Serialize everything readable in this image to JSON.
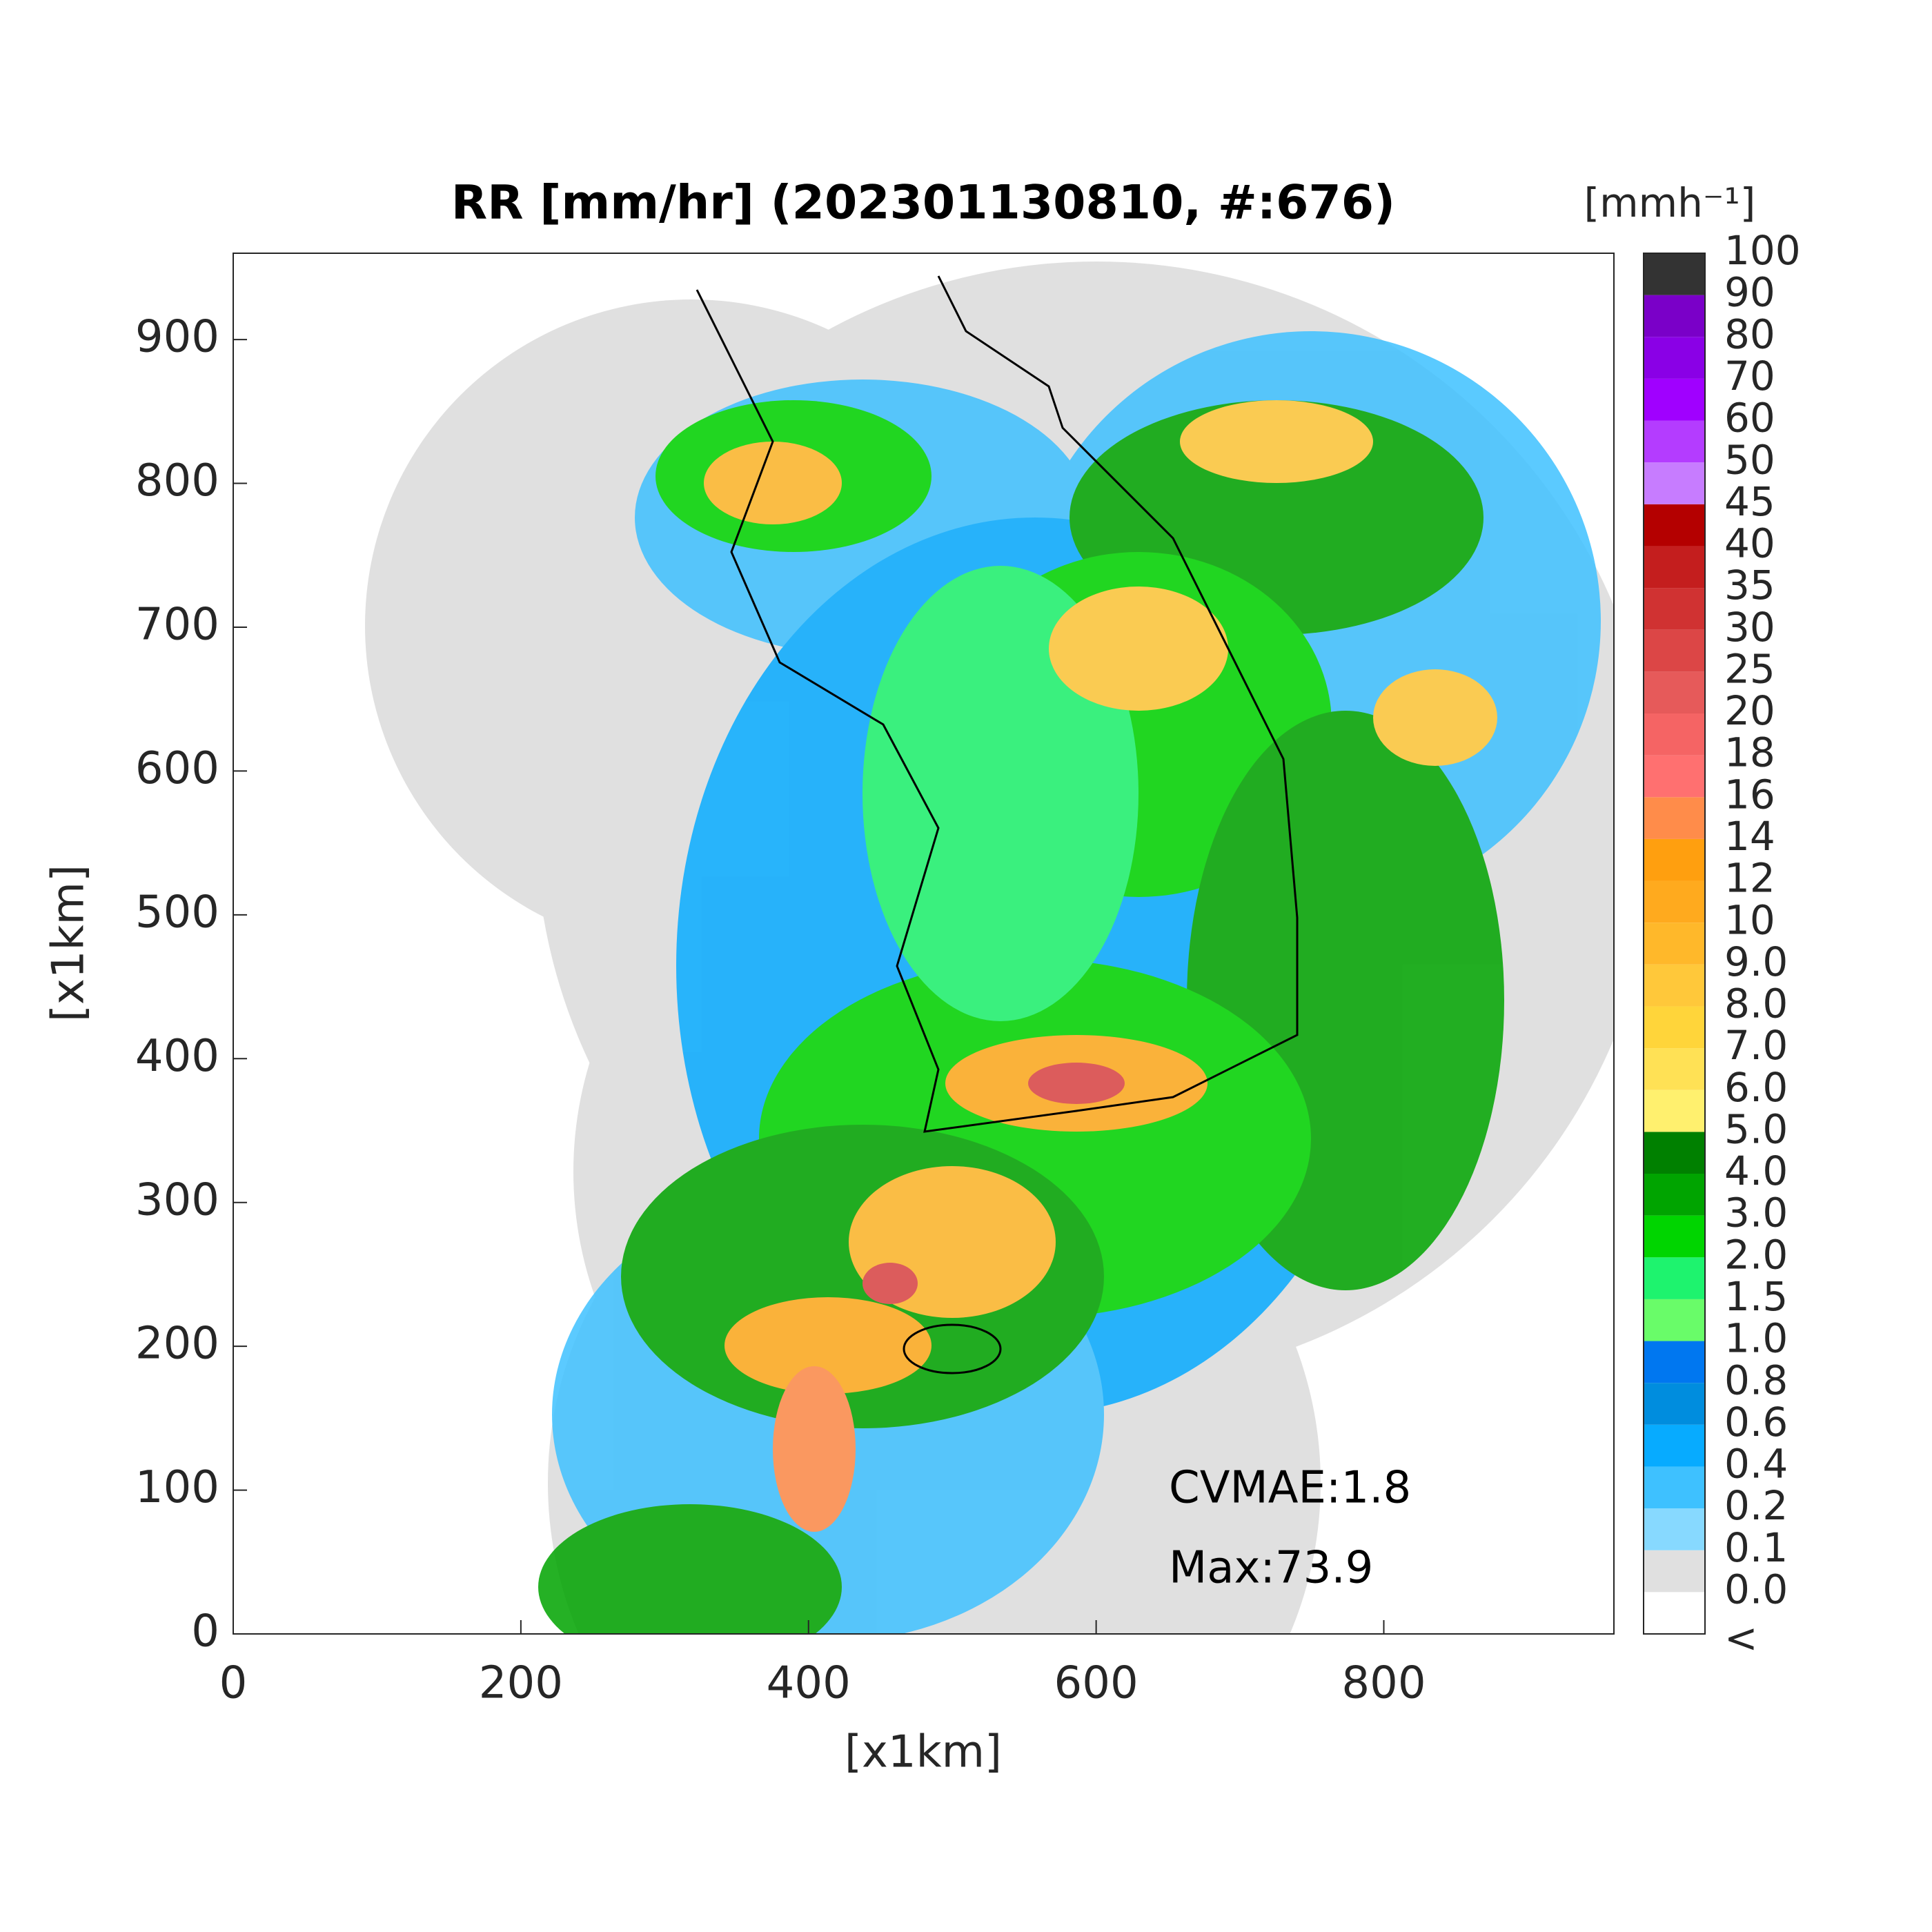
{
  "chart_data": {
    "type": "radar-map",
    "title": "RR [mm/hr] (202301130810, #:676)",
    "xlabel": "[x1km]",
    "ylabel": "[x1km]",
    "xlim": [
      0,
      960
    ],
    "ylim": [
      0,
      960
    ],
    "xticks": [
      0,
      200,
      400,
      600,
      800
    ],
    "yticks": [
      0,
      100,
      200,
      300,
      400,
      500,
      600,
      700,
      800,
      900
    ],
    "annotations": [
      "CVMAE:1.8",
      "Max:73.9"
    ],
    "colorbar": {
      "label": "[mmh⁻¹]",
      "labels": [
        "<",
        "0.0",
        "0.1",
        "0.2",
        "0.4",
        "0.6",
        "0.8",
        "1.0",
        "1.5",
        "2.0",
        "3.0",
        "4.0",
        "5.0",
        "6.0",
        "7.0",
        "8.0",
        "9.0",
        "10",
        "12",
        "14",
        "16",
        "18",
        "20",
        "25",
        "30",
        "35",
        "40",
        "45",
        "50",
        "60",
        "70",
        "80",
        "90",
        "100"
      ],
      "colors": [
        "#ffffff",
        "#e0e0e0",
        "#87d9ff",
        "#3ec1ff",
        "#07abff",
        "#008dde",
        "#0077f0",
        "#69fc69",
        "#1ef36e",
        "#00d500",
        "#00a400",
        "#008000",
        "#fff06e",
        "#ffe155",
        "#ffd53a",
        "#ffc83a",
        "#ffb82a",
        "#ffaa1e",
        "#ff9f0f",
        "#ff8c4a",
        "#ff7070",
        "#f56464",
        "#e65a5a",
        "#dc4646",
        "#d03232",
        "#c41e1e",
        "#b40000",
        "#c77cff",
        "#b43cff",
        "#a000ff",
        "#8a00e6",
        "#7a00c8",
        "#333333"
      ]
    }
  }
}
